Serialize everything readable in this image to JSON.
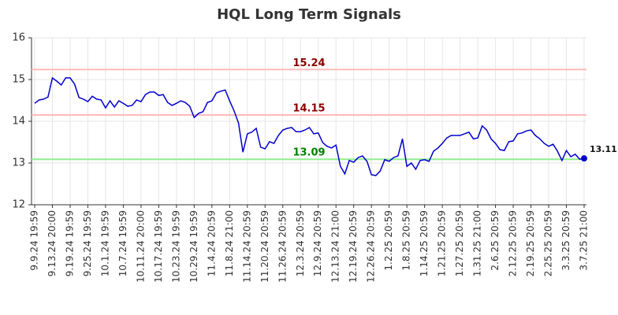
{
  "chart_data": {
    "type": "line",
    "title": "HQL Long Term Signals",
    "categories": [
      "9.9.24 19:59",
      null,
      null,
      null,
      "9.13.24 20:00",
      null,
      null,
      null,
      "9.19.24 19:59",
      null,
      null,
      null,
      "9.25.24 19:59",
      null,
      null,
      null,
      "10.1.24 19:59",
      null,
      null,
      null,
      "10.7.24 19:59",
      null,
      null,
      null,
      "10.11.24 20:00",
      null,
      null,
      null,
      "10.17.24 19:59",
      null,
      null,
      null,
      "10.23.24 19:59",
      null,
      null,
      null,
      "10.29.24 19:59",
      null,
      null,
      null,
      "11.4.24 20:59",
      null,
      null,
      null,
      "11.8.24 21:00",
      null,
      null,
      null,
      "11.14.24 20:59",
      null,
      null,
      null,
      "11.20.24 20:59",
      null,
      null,
      null,
      "11.26.24 20:59",
      null,
      null,
      null,
      "12.3.24 20:59",
      null,
      null,
      null,
      "12.9.24 20:59",
      null,
      null,
      null,
      "12.13.24 21:00",
      null,
      null,
      null,
      "12.19.24 20:59",
      null,
      null,
      null,
      "12.26.24 20:59",
      null,
      null,
      null,
      "1.2.25 20:59",
      null,
      null,
      null,
      "1.8.25 20:59",
      null,
      null,
      null,
      "1.14.25 20:59",
      null,
      null,
      null,
      "1.21.25 20:59",
      null,
      null,
      null,
      "1.27.25 20:59",
      null,
      null,
      null,
      "1.31.25 21:00",
      null,
      null,
      null,
      "2.6.25 20:59",
      null,
      null,
      null,
      "2.12.25 20:59",
      null,
      null,
      null,
      "2.19.25 20:59",
      null,
      null,
      null,
      "2.25.25 20:59",
      null,
      null,
      null,
      "3.3.25 20:59",
      null,
      null,
      null,
      "3.7.25 21:00"
    ],
    "series": [
      {
        "color": "#0000cc",
        "values": [
          14.43,
          14.51,
          14.53,
          14.58,
          15.04,
          14.96,
          14.87,
          15.04,
          15.04,
          14.89,
          14.57,
          14.53,
          14.47,
          14.6,
          14.53,
          14.51,
          14.32,
          14.49,
          14.34,
          14.49,
          14.43,
          14.36,
          14.38,
          14.51,
          14.47,
          14.64,
          14.7,
          14.7,
          14.62,
          14.64,
          14.45,
          14.38,
          14.43,
          14.49,
          14.45,
          14.36,
          14.09,
          14.19,
          14.23,
          14.45,
          14.49,
          14.68,
          14.72,
          14.75,
          14.49,
          14.25,
          13.96,
          13.26,
          13.7,
          13.74,
          13.83,
          13.38,
          13.34,
          13.51,
          13.47,
          13.66,
          13.79,
          13.83,
          13.85,
          13.75,
          13.75,
          13.79,
          13.85,
          13.7,
          13.72,
          13.49,
          13.4,
          13.36,
          13.43,
          12.92,
          12.74,
          13.06,
          13.02,
          13.13,
          13.17,
          13.04,
          12.72,
          12.7,
          12.81,
          13.08,
          13.04,
          13.13,
          13.17,
          13.58,
          12.92,
          13.0,
          12.85,
          13.06,
          13.08,
          13.04,
          13.28,
          13.36,
          13.47,
          13.6,
          13.66,
          13.66,
          13.66,
          13.7,
          13.74,
          13.58,
          13.6,
          13.89,
          13.79,
          13.58,
          13.47,
          13.32,
          13.3,
          13.51,
          13.53,
          13.7,
          13.72,
          13.77,
          13.79,
          13.66,
          13.58,
          13.47,
          13.4,
          13.45,
          13.28,
          13.06,
          13.3,
          13.15,
          13.21,
          13.09,
          13.11
        ]
      }
    ],
    "hlines": [
      {
        "value": 15.24,
        "color": "#ffbbbb",
        "label_color": "#8b0000"
      },
      {
        "value": 14.15,
        "color": "#ffbbbb",
        "label_color": "#8b0000"
      },
      {
        "value": 13.09,
        "color": "#90ee90",
        "label_color": "#008000"
      }
    ],
    "ylim": [
      12,
      16
    ],
    "yticks": [
      12,
      13,
      14,
      15,
      16
    ],
    "grid": true
  }
}
